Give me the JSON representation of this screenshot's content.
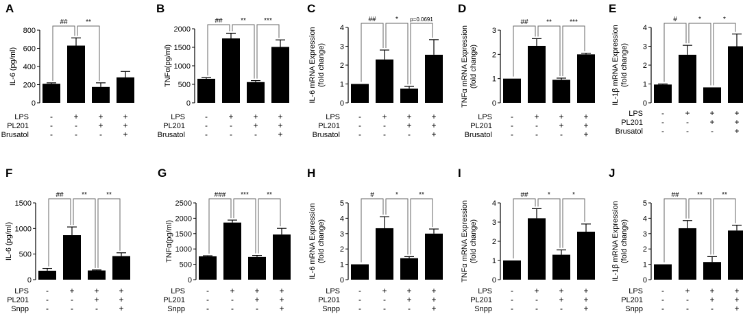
{
  "chart_data": [
    {
      "letter": "A",
      "type": "bar",
      "ylabel": "IL-6 (pg/ml)",
      "ylim": [
        0,
        800
      ],
      "ticks": [
        0,
        200,
        400,
        600,
        800
      ],
      "tick_labels": [
        "0",
        "200",
        "400",
        "600",
        "800"
      ],
      "values": [
        210,
        630,
        175,
        280
      ],
      "errors": [
        10,
        85,
        45,
        65
      ],
      "brackets": [
        {
          "from": 0,
          "to": 1,
          "label": "##"
        },
        {
          "from": 1,
          "to": 2,
          "label": "**"
        }
      ],
      "conditions": [
        {
          "name": "LPS",
          "signs": [
            "-",
            "+",
            "+",
            "+"
          ]
        },
        {
          "name": "PL201",
          "signs": [
            "-",
            "-",
            "+",
            "+"
          ]
        },
        {
          "name": "Brusatol",
          "signs": [
            "-",
            "-",
            "-",
            "+"
          ]
        }
      ]
    },
    {
      "letter": "B",
      "type": "bar",
      "ylabel": "TNFα(pg/ml)",
      "ylim": [
        0,
        2000
      ],
      "ticks": [
        0,
        500,
        1000,
        1500,
        2000
      ],
      "tick_labels": [
        "0",
        "500",
        "1000",
        "1500",
        "2000"
      ],
      "values": [
        650,
        1740,
        560,
        1510
      ],
      "errors": [
        30,
        140,
        40,
        190
      ],
      "brackets": [
        {
          "from": 0,
          "to": 1,
          "label": "##"
        },
        {
          "from": 1,
          "to": 2,
          "label": "**"
        },
        {
          "from": 2,
          "to": 3,
          "label": "***"
        }
      ],
      "conditions": [
        {
          "name": "LPS",
          "signs": [
            "-",
            "+",
            "+",
            "+"
          ]
        },
        {
          "name": "PL201",
          "signs": [
            "-",
            "-",
            "+",
            "+"
          ]
        },
        {
          "name": "Brusatol",
          "signs": [
            "-",
            "-",
            "-",
            "+"
          ]
        }
      ]
    },
    {
      "letter": "C",
      "type": "bar",
      "ylabel": "IL-6 mRNA Expression\n(fold change)",
      "ylim": [
        0,
        4
      ],
      "ticks": [
        0,
        1,
        2,
        3,
        4
      ],
      "tick_labels": [
        "0",
        "1",
        "2",
        "3",
        "4"
      ],
      "values": [
        1.0,
        2.3,
        0.75,
        2.55
      ],
      "errors": [
        0.0,
        0.5,
        0.12,
        0.8
      ],
      "brackets": [
        {
          "from": 0,
          "to": 1,
          "label": "##"
        },
        {
          "from": 1,
          "to": 2,
          "label": "*"
        },
        {
          "from": 2,
          "to": 3,
          "label": "p=0.0691",
          "small": true
        }
      ],
      "conditions": [
        {
          "name": "LPS",
          "signs": [
            "-",
            "+",
            "+",
            "+"
          ]
        },
        {
          "name": "PL201",
          "signs": [
            "-",
            "-",
            "+",
            "+"
          ]
        },
        {
          "name": "Brusatol",
          "signs": [
            "-",
            "-",
            "-",
            "+"
          ]
        }
      ]
    },
    {
      "letter": "D",
      "type": "bar",
      "ylabel": "TNFα mRNA Expression\n(fold change)",
      "ylim": [
        0,
        3
      ],
      "ticks": [
        0,
        1,
        2,
        3
      ],
      "tick_labels": [
        "0",
        "1",
        "2",
        "3"
      ],
      "values": [
        1.0,
        2.35,
        0.95,
        2.0
      ],
      "errors": [
        0.0,
        0.3,
        0.07,
        0.05
      ],
      "brackets": [
        {
          "from": 0,
          "to": 1,
          "label": "##"
        },
        {
          "from": 1,
          "to": 2,
          "label": "**"
        },
        {
          "from": 2,
          "to": 3,
          "label": "***"
        }
      ],
      "conditions": [
        {
          "name": "LPS",
          "signs": [
            "-",
            "+",
            "+",
            "+"
          ]
        },
        {
          "name": "PL201",
          "signs": [
            "-",
            "-",
            "+",
            "+"
          ]
        },
        {
          "name": "Brusatol",
          "signs": [
            "-",
            "-",
            "-",
            "+"
          ]
        }
      ]
    },
    {
      "letter": "E",
      "type": "bar",
      "ylabel": "IL-1β mRNA Expression\n(fold change)",
      "ylim": [
        0,
        4
      ],
      "ticks": [
        0,
        1,
        2,
        3,
        4
      ],
      "tick_labels": [
        "0",
        "1",
        "2",
        "3",
        "4"
      ],
      "values": [
        0.97,
        2.55,
        0.82,
        3.0
      ],
      "errors": [
        0.03,
        0.5,
        0.0,
        0.65
      ],
      "brackets": [
        {
          "from": 0,
          "to": 1,
          "label": "#"
        },
        {
          "from": 1,
          "to": 2,
          "label": "*"
        },
        {
          "from": 2,
          "to": 3,
          "label": "*"
        }
      ],
      "conditions": [
        {
          "name": "LPS",
          "signs": [
            "-",
            "+",
            "+",
            "+"
          ]
        },
        {
          "name": "PL201",
          "signs": [
            "-",
            "-",
            "+",
            "+"
          ]
        },
        {
          "name": "Brusatol",
          "signs": [
            "-",
            "-",
            "-",
            "+"
          ]
        }
      ]
    },
    {
      "letter": "F",
      "type": "bar",
      "ylabel": "IL-6 (pg/ml)",
      "ylim": [
        0,
        1500
      ],
      "ticks": [
        0,
        500,
        1000,
        1500
      ],
      "tick_labels": [
        "0",
        "500",
        "1000",
        "1500"
      ],
      "values": [
        175,
        870,
        180,
        460
      ],
      "errors": [
        45,
        160,
        10,
        65
      ],
      "brackets": [
        {
          "from": 0,
          "to": 1,
          "label": "##"
        },
        {
          "from": 1,
          "to": 2,
          "label": "**"
        },
        {
          "from": 2,
          "to": 3,
          "label": "**"
        }
      ],
      "conditions": [
        {
          "name": "LPS",
          "signs": [
            "-",
            "+",
            "+",
            "+"
          ]
        },
        {
          "name": "PL201",
          "signs": [
            "-",
            "-",
            "+",
            "+"
          ]
        },
        {
          "name": "Snpp",
          "signs": [
            "-",
            "-",
            "-",
            "+"
          ]
        }
      ]
    },
    {
      "letter": "G",
      "type": "bar",
      "ylabel": "TNFα(pg/ml)",
      "ylim": [
        0,
        2500
      ],
      "ticks": [
        0,
        500,
        1000,
        1500,
        2000,
        2500
      ],
      "tick_labels": [
        "0",
        "500",
        "1000",
        "1500",
        "2000",
        "2500"
      ],
      "values": [
        760,
        1860,
        740,
        1470
      ],
      "errors": [
        20,
        80,
        50,
        200
      ],
      "brackets": [
        {
          "from": 0,
          "to": 1,
          "label": "###"
        },
        {
          "from": 1,
          "to": 2,
          "label": "***"
        },
        {
          "from": 2,
          "to": 3,
          "label": "**"
        }
      ],
      "conditions": [
        {
          "name": "LPS",
          "signs": [
            "-",
            "+",
            "+",
            "+"
          ]
        },
        {
          "name": "PL201",
          "signs": [
            "-",
            "-",
            "+",
            "+"
          ]
        },
        {
          "name": "Snpp",
          "signs": [
            "-",
            "-",
            "-",
            "+"
          ]
        }
      ]
    },
    {
      "letter": "H",
      "type": "bar",
      "ylabel": "IL-6 mRNA Expression\n(fold change)",
      "ylim": [
        0,
        5
      ],
      "ticks": [
        0,
        1,
        2,
        3,
        4,
        5
      ],
      "tick_labels": [
        "0",
        "1",
        "2",
        "3",
        "4",
        "5"
      ],
      "values": [
        1.0,
        3.35,
        1.4,
        3.0
      ],
      "errors": [
        0.0,
        0.75,
        0.1,
        0.3
      ],
      "brackets": [
        {
          "from": 0,
          "to": 1,
          "label": "#"
        },
        {
          "from": 1,
          "to": 2,
          "label": "*"
        },
        {
          "from": 2,
          "to": 3,
          "label": "**"
        }
      ],
      "conditions": [
        {
          "name": "LPS",
          "signs": [
            "-",
            "+",
            "+",
            "+"
          ]
        },
        {
          "name": "PL201",
          "signs": [
            "-",
            "-",
            "+",
            "+"
          ]
        },
        {
          "name": "Snpp",
          "signs": [
            "-",
            "-",
            "-",
            "+"
          ]
        }
      ]
    },
    {
      "letter": "I",
      "type": "bar",
      "ylabel": "TNFα mRNA Expression\n(fold change)",
      "ylim": [
        0,
        4
      ],
      "ticks": [
        0,
        1,
        2,
        3,
        4
      ],
      "tick_labels": [
        "0",
        "1",
        "2",
        "3",
        "4"
      ],
      "values": [
        1.0,
        3.2,
        1.3,
        2.5
      ],
      "errors": [
        0.0,
        0.5,
        0.25,
        0.4
      ],
      "brackets": [
        {
          "from": 0,
          "to": 1,
          "label": "##"
        },
        {
          "from": 1,
          "to": 2,
          "label": "*"
        },
        {
          "from": 2,
          "to": 3,
          "label": "*"
        }
      ],
      "conditions": [
        {
          "name": "LPS",
          "signs": [
            "-",
            "+",
            "+",
            "+"
          ]
        },
        {
          "name": "PL201",
          "signs": [
            "-",
            "-",
            "+",
            "+"
          ]
        },
        {
          "name": "Snpp",
          "signs": [
            "-",
            "-",
            "-",
            "+"
          ]
        }
      ]
    },
    {
      "letter": "J",
      "type": "bar",
      "ylabel": "IL-1β mRNA Expression\n(fold change)",
      "ylim": [
        0,
        5
      ],
      "ticks": [
        0,
        1,
        2,
        3,
        4,
        5
      ],
      "tick_labels": [
        "0",
        "1",
        "2",
        "3",
        "4",
        "5"
      ],
      "values": [
        1.0,
        3.35,
        1.15,
        3.2
      ],
      "errors": [
        0.0,
        0.5,
        0.35,
        0.35
      ],
      "brackets": [
        {
          "from": 0,
          "to": 1,
          "label": "##"
        },
        {
          "from": 1,
          "to": 2,
          "label": "**"
        },
        {
          "from": 2,
          "to": 3,
          "label": "**"
        }
      ],
      "conditions": [
        {
          "name": "LPS",
          "signs": [
            "-",
            "+",
            "+",
            "+"
          ]
        },
        {
          "name": "PL201",
          "signs": [
            "-",
            "-",
            "+",
            "+"
          ]
        },
        {
          "name": "Snpp",
          "signs": [
            "-",
            "-",
            "-",
            "+"
          ]
        }
      ]
    }
  ]
}
